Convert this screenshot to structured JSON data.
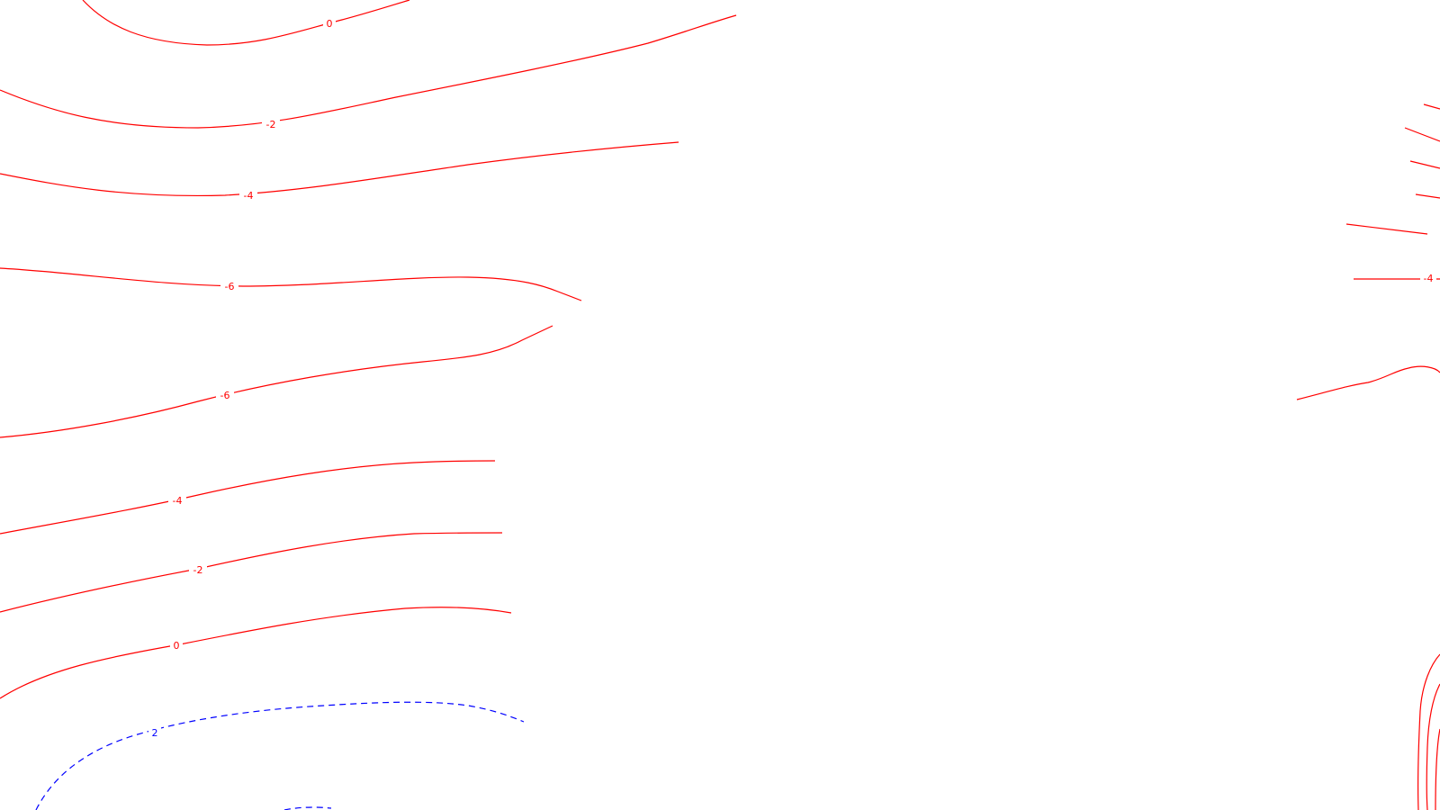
{
  "colors": {
    "negative_contour": "#ff0000",
    "positive_contour": "#0000ff",
    "background": "#ffffff"
  },
  "contours": [
    {
      "id": "top-0",
      "label": "0",
      "color": "#ff0000",
      "style": "solid"
    },
    {
      "id": "upper-neg2",
      "label": "-2",
      "color": "#ff0000",
      "style": "solid"
    },
    {
      "id": "upper-neg4",
      "label": "-4",
      "color": "#ff0000",
      "style": "solid"
    },
    {
      "id": "upper-neg6",
      "label": "-6",
      "color": "#ff0000",
      "style": "solid"
    },
    {
      "id": "lower-neg6",
      "label": "-6",
      "color": "#ff0000",
      "style": "solid"
    },
    {
      "id": "lower-neg4",
      "label": "-4",
      "color": "#ff0000",
      "style": "solid"
    },
    {
      "id": "lower-neg2",
      "label": "-2",
      "color": "#ff0000",
      "style": "solid"
    },
    {
      "id": "lower-0",
      "label": "0",
      "color": "#ff0000",
      "style": "solid"
    },
    {
      "id": "pos-2",
      "label": "2",
      "color": "#0000ff",
      "style": "dashed"
    },
    {
      "id": "right-neg4",
      "label": "-4",
      "color": "#ff0000",
      "style": "solid"
    }
  ]
}
